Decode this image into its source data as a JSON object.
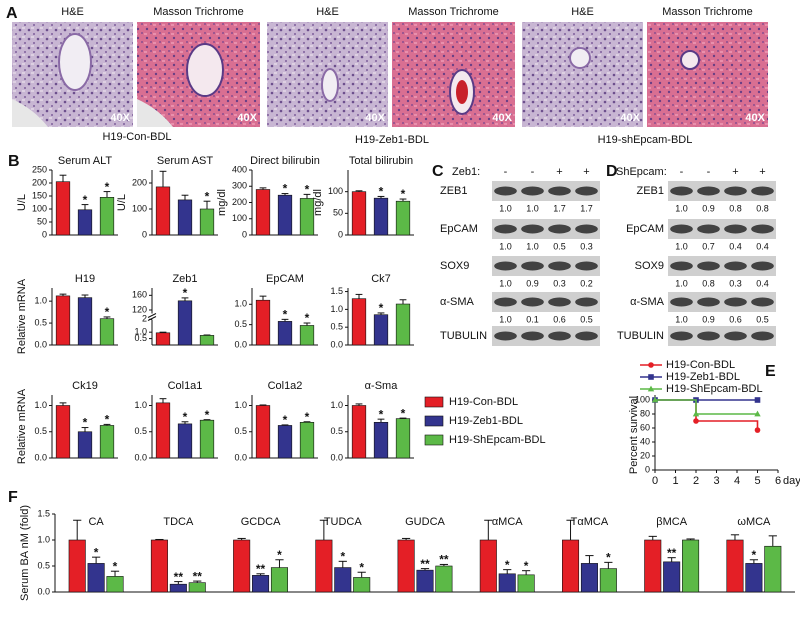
{
  "panel_labels": [
    "A",
    "B",
    "C",
    "D",
    "E",
    "F"
  ],
  "panel_a": {
    "images": [
      {
        "stain": "H&E",
        "magnification": "40X"
      },
      {
        "stain": "Masson Trichrome",
        "magnification": "40X"
      },
      {
        "stain": "H&E",
        "magnification": "40X"
      },
      {
        "stain": "Masson Trichrome",
        "magnification": "40X"
      },
      {
        "stain": "H&E",
        "magnification": "40X"
      },
      {
        "stain": "Masson Trichrome",
        "magnification": "40X"
      }
    ],
    "captions": [
      "H19-Con-BDL",
      "H19-Zeb1-BDL",
      "H19-shEpcam-BDL"
    ]
  },
  "legend": [
    {
      "name": "H19-Con-BDL",
      "color": "#e41f26"
    },
    {
      "name": "H19-Zeb1-BDL",
      "color": "#33348e"
    },
    {
      "name": "H19-ShEpcam-BDL",
      "color": "#5cb947"
    }
  ],
  "blots": [
    {
      "treatment": "Zeb1:",
      "lanes": [
        "-",
        "-",
        "+",
        "+"
      ],
      "rows": [
        {
          "protein": "ZEB1",
          "quant": [
            "1.0",
            "1.0",
            "1.7",
            "1.7"
          ]
        },
        {
          "protein": "EpCAM",
          "quant": [
            "1.0",
            "1.0",
            "0.5",
            "0.3"
          ]
        },
        {
          "protein": "SOX9",
          "quant": [
            "1.0",
            "0.9",
            "0.3",
            "0.2"
          ]
        },
        {
          "protein": "α-SMA",
          "quant": [
            "1.0",
            "0.1",
            "0.6",
            "0.5"
          ]
        },
        {
          "protein": "TUBULIN"
        }
      ]
    },
    {
      "treatment": "ShEpcam:",
      "lanes": [
        "-",
        "-",
        "+",
        "+"
      ],
      "rows": [
        {
          "protein": "ZEB1",
          "quant": [
            "1.0",
            "0.9",
            "0.8",
            "0.8"
          ]
        },
        {
          "protein": "EpCAM",
          "quant": [
            "1.0",
            "0.7",
            "0.4",
            "0.4"
          ]
        },
        {
          "protein": "SOX9",
          "quant": [
            "1.0",
            "0.8",
            "0.3",
            "0.4"
          ]
        },
        {
          "protein": "α-SMA",
          "quant": [
            "1.0",
            "0.9",
            "0.6",
            "0.5"
          ]
        },
        {
          "protein": "TUBULIN"
        }
      ]
    }
  ],
  "chart_data": [
    {
      "type": "bar",
      "title": "Serum ALT",
      "y_label": "U/L",
      "ylim": [
        0,
        250
      ],
      "yticks": [
        0,
        50,
        100,
        150,
        200,
        250
      ],
      "values": [
        205,
        97,
        145
      ],
      "errors": [
        25,
        20,
        22
      ],
      "stars": [
        null,
        "*",
        "*"
      ]
    },
    {
      "type": "bar",
      "title": "Serum AST",
      "y_label": "U/L",
      "ylim": [
        0,
        250
      ],
      "yticks": [
        0,
        100,
        200
      ],
      "values": [
        185,
        135,
        100
      ],
      "errors": [
        60,
        18,
        30
      ],
      "stars": [
        null,
        null,
        "*"
      ]
    },
    {
      "type": "bar",
      "title": "Direct bilirubin",
      "y_label": "mg/dl",
      "ylim": [
        0,
        400
      ],
      "yticks": [
        0,
        100,
        200,
        300,
        400
      ],
      "values": [
        280,
        245,
        225
      ],
      "errors": [
        10,
        10,
        25
      ],
      "stars": [
        null,
        "*",
        "*"
      ]
    },
    {
      "type": "bar",
      "title": "Total bilirubin",
      "y_label": "mg/dl",
      "ylim": [
        0,
        150
      ],
      "yticks": [
        0,
        50,
        100
      ],
      "values": [
        100,
        85,
        78
      ],
      "errors": [
        2,
        4,
        5
      ],
      "stars": [
        null,
        "*",
        "*"
      ]
    },
    {
      "type": "bar",
      "title": "H19",
      "y_label": "Relative mRNA",
      "ylim": [
        0,
        1.3
      ],
      "yticks": [
        {
          "value": 0,
          "label": "0.0"
        },
        {
          "value": 0.5,
          "label": "0.5"
        },
        {
          "value": 1,
          "label": "1.0"
        }
      ],
      "values": [
        1.12,
        1.08,
        0.6
      ],
      "errors": [
        0.04,
        0.06,
        0.04
      ],
      "stars": [
        null,
        null,
        "*"
      ]
    },
    {
      "type": "bar",
      "title": "Zeb1",
      "ylim": [
        0,
        180
      ],
      "ybreak": [
        2,
        110
      ],
      "yticks": [
        {
          "value": 0.5,
          "label": "0.5"
        },
        {
          "value": 1,
          "label": "1.0"
        },
        2,
        120,
        160
      ],
      "values": [
        0.95,
        145,
        0.75
      ],
      "errors": [
        0.05,
        8,
        0.03
      ],
      "stars": [
        null,
        "*",
        null
      ]
    },
    {
      "type": "bar",
      "title": "EpCAM",
      "ylim": [
        0,
        1.4
      ],
      "yticks": [
        {
          "value": 0,
          "label": "0.0"
        },
        {
          "value": 0.5,
          "label": "0.5"
        },
        {
          "value": 1,
          "label": "1.0"
        }
      ],
      "values": [
        1.1,
        0.58,
        0.48
      ],
      "errors": [
        0.1,
        0.05,
        0.06
      ],
      "stars": [
        null,
        "*",
        "*"
      ]
    },
    {
      "type": "bar",
      "title": "Ck7",
      "ylim": [
        0,
        1.6
      ],
      "yticks": [
        {
          "value": 0,
          "label": "0.0"
        },
        {
          "value": 0.5,
          "label": "0.5"
        },
        {
          "value": 1,
          "label": "1.0"
        },
        {
          "value": 1.5,
          "label": "1.5"
        }
      ],
      "values": [
        1.3,
        0.85,
        1.15
      ],
      "errors": [
        0.12,
        0.05,
        0.12
      ],
      "stars": [
        null,
        "*",
        null
      ]
    },
    {
      "type": "bar",
      "title": "Ck19",
      "y_label": "Relative mRNA",
      "ylim": [
        0,
        1.2
      ],
      "yticks": [
        {
          "value": 0,
          "label": "0.0"
        },
        {
          "value": 0.5,
          "label": "0.5"
        },
        {
          "value": 1,
          "label": "1.0"
        }
      ],
      "values": [
        1.0,
        0.5,
        0.62
      ],
      "errors": [
        0.05,
        0.08,
        0.02
      ],
      "stars": [
        null,
        "*",
        "*"
      ]
    },
    {
      "type": "bar",
      "title": "Col1a1",
      "ylim": [
        0,
        1.2
      ],
      "yticks": [
        {
          "value": 0,
          "label": "0.0"
        },
        {
          "value": 0.5,
          "label": "0.5"
        },
        {
          "value": 1,
          "label": "1.0"
        }
      ],
      "values": [
        1.05,
        0.65,
        0.72
      ],
      "errors": [
        0.08,
        0.04,
        0.01
      ],
      "stars": [
        null,
        "*",
        "*"
      ]
    },
    {
      "type": "bar",
      "title": "Col1a2",
      "ylim": [
        0,
        1.2
      ],
      "yticks": [
        {
          "value": 0,
          "label": "0.0"
        },
        {
          "value": 0.5,
          "label": "0.5"
        },
        {
          "value": 1,
          "label": "1.0"
        }
      ],
      "values": [
        1.0,
        0.62,
        0.68
      ],
      "errors": [
        0.01,
        0.01,
        0.01
      ],
      "stars": [
        null,
        "*",
        "*"
      ]
    },
    {
      "type": "bar",
      "title": "α-Sma",
      "ylim": [
        0,
        1.2
      ],
      "yticks": [
        {
          "value": 0,
          "label": "0.0"
        },
        {
          "value": 0.5,
          "label": "0.5"
        },
        {
          "value": 1,
          "label": "1.0"
        }
      ],
      "values": [
        1.0,
        0.68,
        0.75
      ],
      "errors": [
        0.03,
        0.06,
        0.01
      ],
      "stars": [
        null,
        "*",
        "*"
      ]
    },
    {
      "type": "line",
      "step": true,
      "x_label": "days",
      "y_label": "Percent survival",
      "xlim": [
        0,
        6
      ],
      "xticks": [
        0,
        1,
        2,
        3,
        4,
        5,
        6
      ],
      "ylim": [
        0,
        100
      ],
      "yticks": [
        0,
        20,
        40,
        60,
        80,
        100
      ],
      "series": [
        {
          "name": "H19-Con-BDL",
          "color": "#e41f26",
          "marker": "circle",
          "x": [
            0,
            2,
            5
          ],
          "values": [
            100,
            70,
            57
          ]
        },
        {
          "name": "H19-Zeb1-BDL",
          "color": "#33348e",
          "marker": "square",
          "x": [
            0,
            2,
            5
          ],
          "values": [
            100,
            100,
            100
          ]
        },
        {
          "name": "H19-ShEpcam-BDL",
          "color": "#5cb947",
          "marker": "triangle",
          "x": [
            0,
            2,
            5
          ],
          "values": [
            100,
            80,
            80
          ]
        }
      ]
    },
    {
      "type": "grouped-bar",
      "y_label": "Serum BA nM (fold)",
      "ylim": [
        0,
        1.5
      ],
      "yticks": [
        {
          "value": 0,
          "label": "0.0"
        },
        {
          "value": 0.5,
          "label": "0.5"
        },
        {
          "value": 1,
          "label": "1.0"
        },
        {
          "value": 1.5,
          "label": "1.5"
        }
      ],
      "categories": [
        "CA",
        "TDCA",
        "GCDCA",
        "TUDCA",
        "GUDCA",
        "αMCA",
        "TαMCA",
        "βMCA",
        "ωMCA"
      ],
      "series": [
        {
          "values": [
            1.0,
            1.0,
            1.0,
            1.0,
            1.0,
            1.0,
            1.0,
            1.0,
            1.0
          ],
          "errors": [
            0.38,
            0.01,
            0.03,
            0.38,
            0.03,
            0.38,
            0.38,
            0.07,
            0.1
          ],
          "stars": [
            null,
            null,
            null,
            null,
            null,
            null,
            null,
            null,
            null
          ]
        },
        {
          "values": [
            0.55,
            0.15,
            0.32,
            0.47,
            0.42,
            0.35,
            0.55,
            0.58,
            0.55
          ],
          "errors": [
            0.12,
            0.05,
            0.03,
            0.12,
            0.03,
            0.08,
            0.15,
            0.08,
            0.07
          ],
          "stars": [
            "*",
            "**",
            "**",
            "*",
            "**",
            "*",
            null,
            "**",
            "*"
          ]
        },
        {
          "values": [
            0.3,
            0.18,
            0.47,
            0.28,
            0.5,
            0.33,
            0.45,
            1.0,
            0.88
          ],
          "errors": [
            0.1,
            0.03,
            0.15,
            0.1,
            0.03,
            0.08,
            0.12,
            0.02,
            0.2
          ],
          "stars": [
            "*",
            "**",
            "*",
            "*",
            "**",
            "*",
            "*",
            null,
            null
          ]
        }
      ]
    }
  ]
}
